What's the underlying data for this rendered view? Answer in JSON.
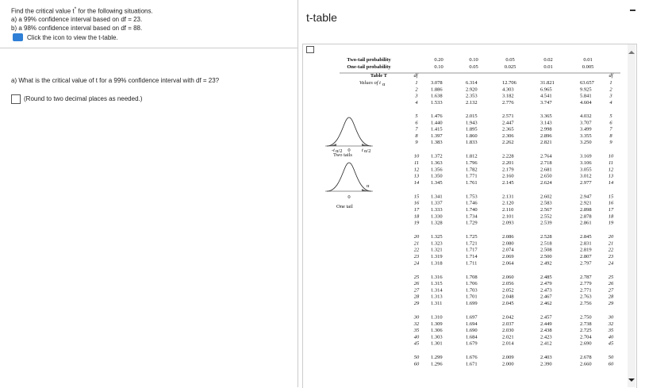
{
  "header": {
    "intro": "Find the critical value t",
    "intro_sup": "*",
    "intro_end": " for the following situations.",
    "part_a": "a) a 99% confidence interval based on df = 23.",
    "part_b": "b) a 98% confidence interval based on df = 88.",
    "link": "Click the icon to view the t-table."
  },
  "question": {
    "text": "a) What is the critical value of t for a 99% confidence interval with df = 23?",
    "hint": "(Round to two decimal places as needed.)"
  },
  "dialog": {
    "title": "t-table"
  },
  "table": {
    "two_tail_label": "Two-tail probability",
    "one_tail_label": "One-tail probability",
    "caption": "Table T",
    "values_label": "Values of t",
    "values_sub": "α",
    "df_label": "df",
    "two_tail": [
      "0.20",
      "0.10",
      "0.05",
      "0.02",
      "0.01"
    ],
    "one_tail": [
      "0.10",
      "0.05",
      "0.025",
      "0.01",
      "0.005"
    ],
    "groups": [
      [
        [
          "1",
          "3.078",
          "6.314",
          "12.706",
          "31.821",
          "63.657"
        ],
        [
          "2",
          "1.886",
          "2.920",
          "4.303",
          "6.965",
          "9.925"
        ],
        [
          "3",
          "1.638",
          "2.353",
          "3.182",
          "4.541",
          "5.841"
        ],
        [
          "4",
          "1.533",
          "2.132",
          "2.776",
          "3.747",
          "4.604"
        ]
      ],
      [
        [
          "5",
          "1.476",
          "2.015",
          "2.571",
          "3.365",
          "4.032"
        ],
        [
          "6",
          "1.440",
          "1.943",
          "2.447",
          "3.143",
          "3.707"
        ],
        [
          "7",
          "1.415",
          "1.895",
          "2.365",
          "2.998",
          "3.499"
        ],
        [
          "8",
          "1.397",
          "1.860",
          "2.306",
          "2.896",
          "3.355"
        ],
        [
          "9",
          "1.383",
          "1.833",
          "2.262",
          "2.821",
          "3.250"
        ]
      ],
      [
        [
          "10",
          "1.372",
          "1.812",
          "2.228",
          "2.764",
          "3.169"
        ],
        [
          "11",
          "1.363",
          "1.796",
          "2.201",
          "2.718",
          "3.106"
        ],
        [
          "12",
          "1.356",
          "1.782",
          "2.179",
          "2.681",
          "3.055"
        ],
        [
          "13",
          "1.350",
          "1.771",
          "2.160",
          "2.650",
          "3.012"
        ],
        [
          "14",
          "1.345",
          "1.761",
          "2.145",
          "2.624",
          "2.977"
        ]
      ],
      [
        [
          "15",
          "1.341",
          "1.753",
          "2.131",
          "2.602",
          "2.947"
        ],
        [
          "16",
          "1.337",
          "1.746",
          "2.120",
          "2.583",
          "2.921"
        ],
        [
          "17",
          "1.333",
          "1.740",
          "2.110",
          "2.567",
          "2.898"
        ],
        [
          "18",
          "1.330",
          "1.734",
          "2.101",
          "2.552",
          "2.878"
        ],
        [
          "19",
          "1.328",
          "1.729",
          "2.093",
          "2.539",
          "2.861"
        ]
      ],
      [
        [
          "20",
          "1.325",
          "1.725",
          "2.086",
          "2.528",
          "2.845"
        ],
        [
          "21",
          "1.323",
          "1.721",
          "2.080",
          "2.518",
          "2.831"
        ],
        [
          "22",
          "1.321",
          "1.717",
          "2.074",
          "2.508",
          "2.819"
        ],
        [
          "23",
          "1.319",
          "1.714",
          "2.069",
          "2.500",
          "2.807"
        ],
        [
          "24",
          "1.318",
          "1.711",
          "2.064",
          "2.492",
          "2.797"
        ]
      ],
      [
        [
          "25",
          "1.316",
          "1.708",
          "2.060",
          "2.485",
          "2.787"
        ],
        [
          "26",
          "1.315",
          "1.706",
          "2.056",
          "2.479",
          "2.779"
        ],
        [
          "27",
          "1.314",
          "1.703",
          "2.052",
          "2.473",
          "2.771"
        ],
        [
          "28",
          "1.313",
          "1.701",
          "2.048",
          "2.467",
          "2.763"
        ],
        [
          "29",
          "1.311",
          "1.699",
          "2.045",
          "2.462",
          "2.756"
        ]
      ],
      [
        [
          "30",
          "1.310",
          "1.697",
          "2.042",
          "2.457",
          "2.750"
        ],
        [
          "32",
          "1.309",
          "1.694",
          "2.037",
          "2.449",
          "2.738"
        ],
        [
          "35",
          "1.306",
          "1.690",
          "2.030",
          "2.438",
          "2.725"
        ],
        [
          "40",
          "1.303",
          "1.684",
          "2.021",
          "2.423",
          "2.704"
        ],
        [
          "45",
          "1.301",
          "1.679",
          "2.014",
          "2.412",
          "2.690"
        ]
      ],
      [
        [
          "50",
          "1.299",
          "1.676",
          "2.009",
          "2.403",
          "2.678"
        ],
        [
          "60",
          "1.296",
          "1.671",
          "2.000",
          "2.390",
          "2.660"
        ]
      ]
    ]
  },
  "figures": {
    "two_tails": {
      "label": "Two tails",
      "left": "-t",
      "left_sub": "α/2",
      "zero": "0",
      "right": "t",
      "right_sub": "α/2"
    },
    "one_tail": {
      "label": "One tail",
      "zero": "0",
      "area": "α"
    }
  }
}
